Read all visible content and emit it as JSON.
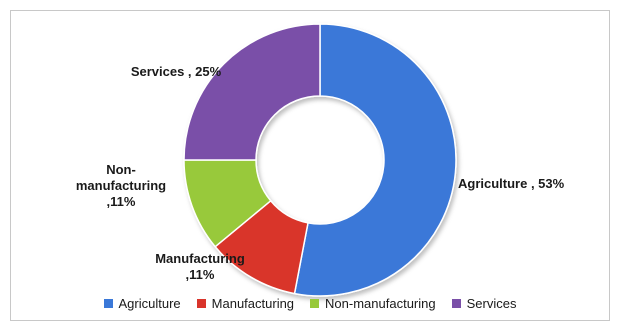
{
  "chart_data": {
    "type": "pie",
    "variant": "donut",
    "title": "",
    "categories": [
      "Agriculture",
      "Manufacturing",
      "Non-manufacturing",
      "Services"
    ],
    "values": [
      53,
      11,
      11,
      25
    ],
    "unit": "%",
    "colors": [
      "#3a78d8",
      "#d9342b",
      "#98c93a",
      "#7a4fa8"
    ],
    "data_labels": [
      {
        "lines": [
          "Agriculture , 53%"
        ]
      },
      {
        "lines": [
          "Manufacturing",
          ",11%"
        ]
      },
      {
        "lines": [
          "Non-",
          "manufacturing",
          ",11%"
        ]
      },
      {
        "lines": [
          "Services , 25%"
        ]
      }
    ],
    "legend": {
      "position": "bottom",
      "entries": [
        "Agriculture",
        "Manufacturing",
        "Non-manufacturing",
        "Services"
      ]
    }
  }
}
